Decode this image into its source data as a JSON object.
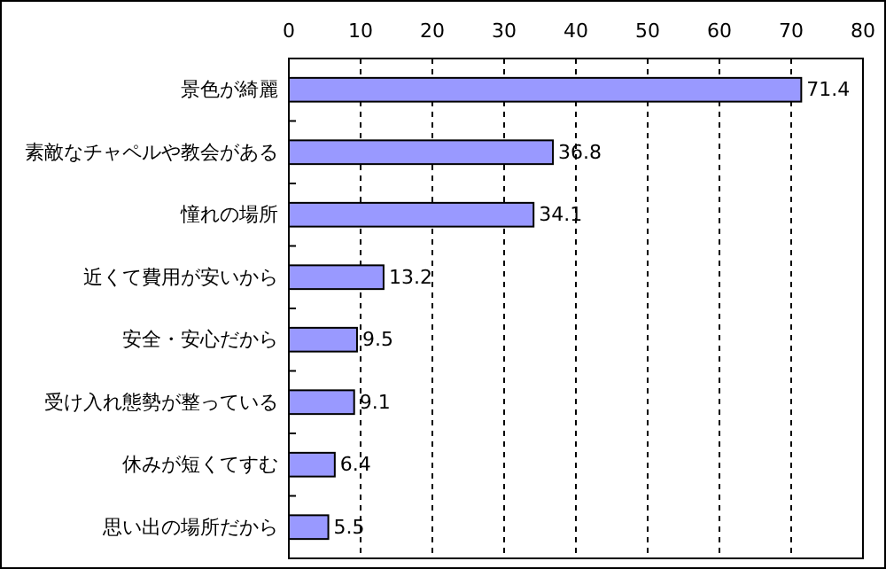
{
  "chart_data": {
    "type": "bar",
    "orientation": "horizontal",
    "categories": [
      "景色が綺麗",
      "素敵なチャペルや教会がある",
      "憧れの場所",
      "近くて費用が安いから",
      "安全・安心だから",
      "受け入れ態勢が整っている",
      "休みが短くてすむ",
      "思い出の場所だから"
    ],
    "values": [
      71.4,
      36.8,
      34.1,
      13.2,
      9.5,
      9.1,
      6.4,
      5.5
    ],
    "color": "#9999ff",
    "xlim": [
      0,
      80
    ],
    "xticks": [
      0,
      10,
      20,
      30,
      40,
      50,
      60,
      70,
      80
    ],
    "grid": "x",
    "data_labels": true
  }
}
